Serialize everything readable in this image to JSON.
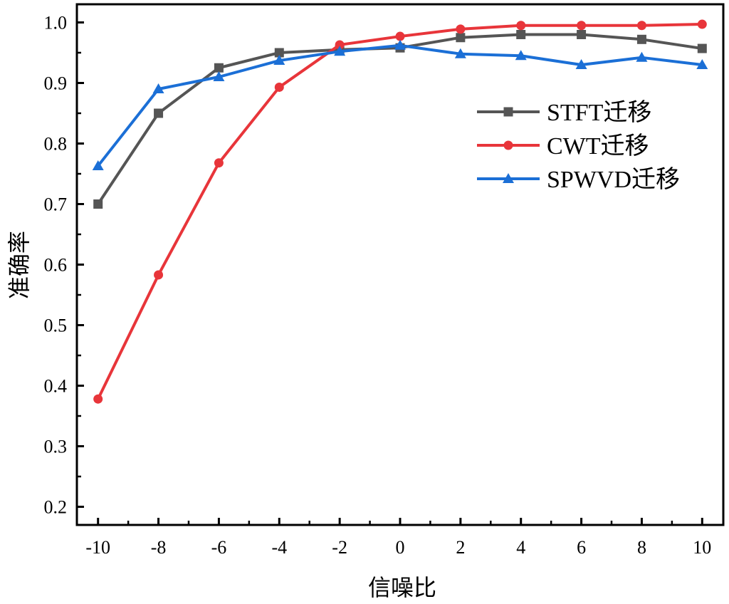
{
  "chart_data": {
    "type": "line",
    "xlabel": "信噪比",
    "ylabel": "准确率",
    "x": [
      -10,
      -8,
      -6,
      -4,
      -2,
      0,
      2,
      4,
      6,
      8,
      10
    ],
    "xticks": [
      "-10",
      "-8",
      "-6",
      "-4",
      "-2",
      "0",
      "2",
      "4",
      "6",
      "8",
      "10"
    ],
    "yticks": [
      "0.2",
      "0.3",
      "0.4",
      "0.5",
      "0.6",
      "0.7",
      "0.8",
      "0.9",
      "1.0"
    ],
    "xlim": [
      -10.7,
      10.7
    ],
    "ylim": [
      0.17,
      1.03
    ],
    "grid": false,
    "legend_position": "top-right",
    "series": [
      {
        "name": "STFT迁移",
        "color": "#555555",
        "marker": "square",
        "values": [
          0.7,
          0.85,
          0.925,
          0.95,
          0.955,
          0.958,
          0.975,
          0.98,
          0.98,
          0.972,
          0.957
        ]
      },
      {
        "name": "CWT迁移",
        "color": "#e8353a",
        "marker": "circle",
        "values": [
          0.378,
          0.583,
          0.768,
          0.893,
          0.963,
          0.977,
          0.989,
          0.995,
          0.995,
          0.995,
          0.997
        ]
      },
      {
        "name": "SPWVD迁移",
        "color": "#1b6fd6",
        "marker": "triangle",
        "values": [
          0.763,
          0.89,
          0.91,
          0.937,
          0.952,
          0.962,
          0.948,
          0.945,
          0.93,
          0.942,
          0.93
        ]
      }
    ]
  }
}
